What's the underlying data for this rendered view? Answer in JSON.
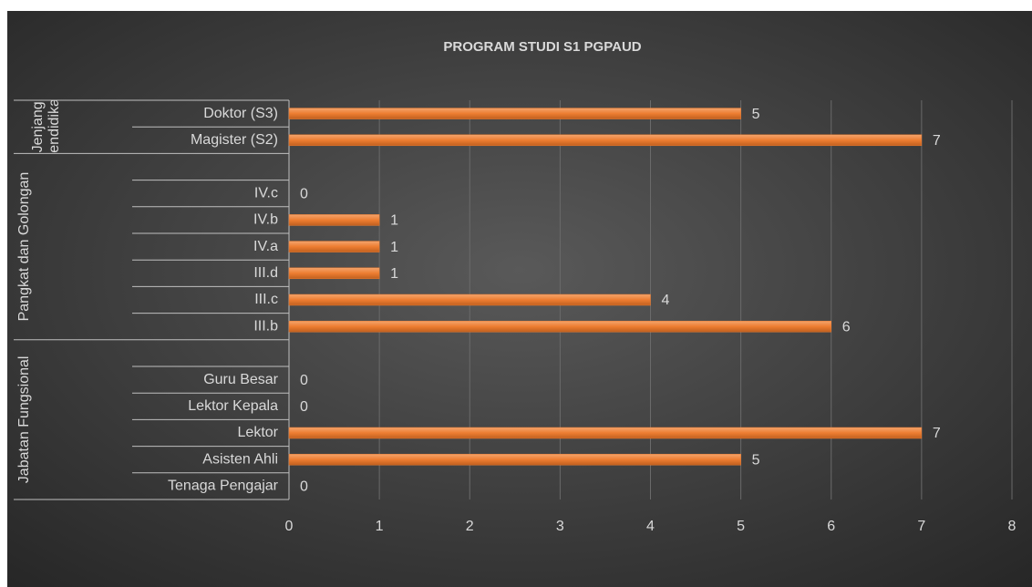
{
  "chart_data": {
    "type": "bar",
    "orientation": "horizontal",
    "title": "PROGRAM STUDI S1 PGPAUD",
    "categories": [
      "Doktor (S3)",
      "Magister (S2)",
      null,
      "IV.c",
      "IV.b",
      "IV.a",
      "III.d",
      "III.c",
      "III.b",
      null,
      "Guru Besar",
      "Lektor Kepala",
      "Lektor",
      "Asisten Ahli",
      "Tenaga Pengajar"
    ],
    "groups": [
      {
        "label": "Jenjang Pendidikan",
        "span": 2
      },
      {
        "label": "Pangkat dan Golongan",
        "span": 7
      },
      {
        "label": "Jabatan Fungsional",
        "span": 6
      }
    ],
    "series": [
      {
        "color": "#ed7d31",
        "values": [
          5,
          7,
          null,
          0,
          1,
          1,
          1,
          4,
          6,
          null,
          0,
          0,
          7,
          5,
          0
        ]
      }
    ],
    "xlim": [
      0,
      8
    ],
    "xticks": [
      0,
      1,
      2,
      3,
      4,
      5,
      6,
      7,
      8
    ],
    "grid": true
  }
}
